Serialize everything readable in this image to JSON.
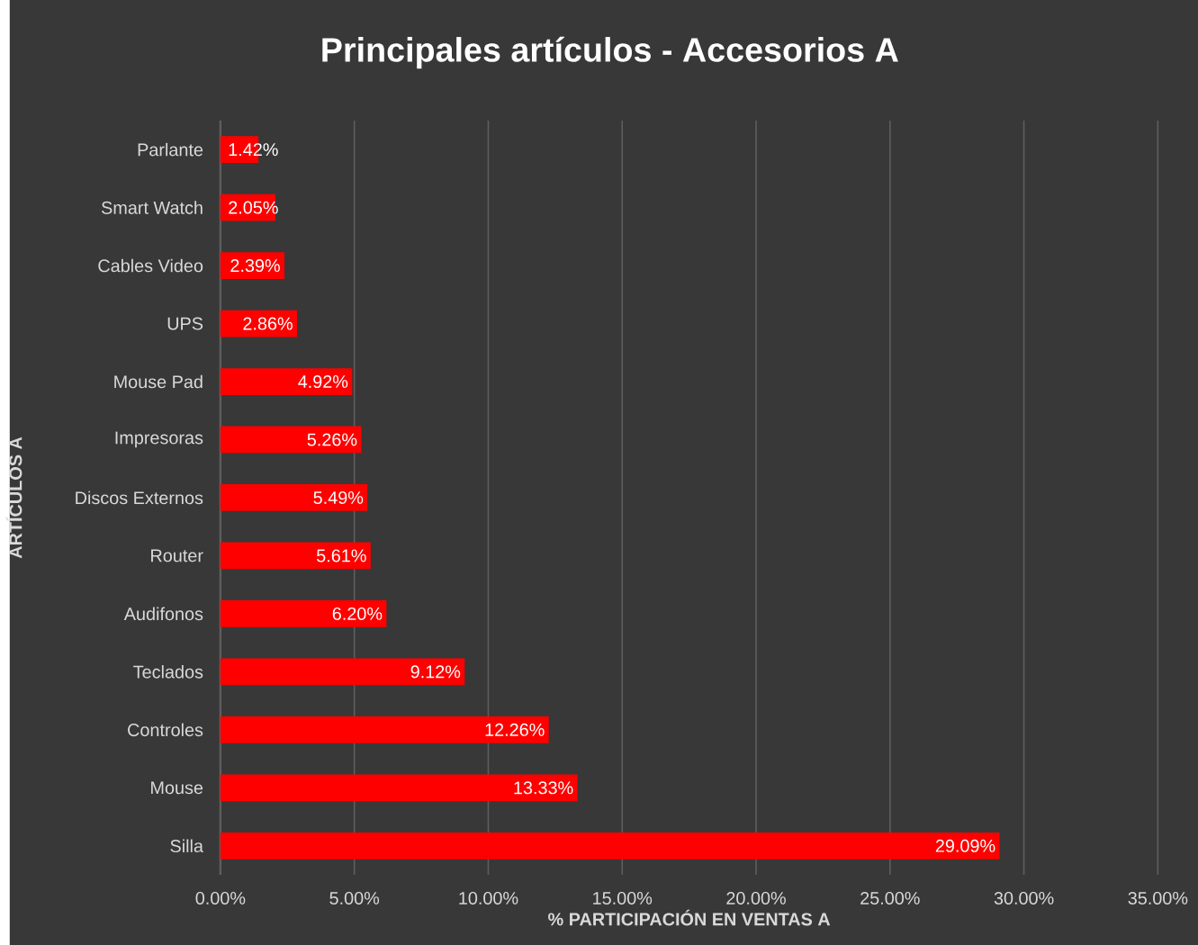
{
  "chart_data": {
    "type": "bar",
    "orientation": "horizontal",
    "title": "Principales artículos - Accesorios A",
    "xlabel": "% PARTICIPACIÓN EN VENTAS A",
    "ylabel": "ARTÍCULOS A",
    "categories": [
      "Parlante",
      "Smart Watch",
      "Cables Video",
      "UPS",
      "Mouse Pad",
      "Impresoras",
      "Discos Externos",
      "Router",
      "Audifonos",
      "Teclados",
      "Controles",
      "Mouse",
      "Silla"
    ],
    "values": [
      1.42,
      2.05,
      2.39,
      2.86,
      4.92,
      5.26,
      5.49,
      5.61,
      6.2,
      9.12,
      12.26,
      13.33,
      29.09
    ],
    "value_labels": [
      "1.42%",
      "2.05%",
      "2.39%",
      "2.86%",
      "4.92%",
      "5.26%",
      "5.49%",
      "5.61%",
      "6.20%",
      "9.12%",
      "12.26%",
      "13.33%",
      "29.09%"
    ],
    "color": "#ff0000",
    "xlim": [
      0,
      35
    ],
    "xticks": [
      {
        "value": 0,
        "label": "0.00%"
      },
      {
        "value": 5,
        "label": "5.00%"
      },
      {
        "value": 10,
        "label": "10.00%"
      },
      {
        "value": 15,
        "label": "15.00%"
      },
      {
        "value": 20,
        "label": "20.00%"
      },
      {
        "value": 25,
        "label": "25.00%"
      },
      {
        "value": 30,
        "label": "30.00%"
      },
      {
        "value": 35,
        "label": "35.00%"
      }
    ],
    "grid": "x"
  }
}
